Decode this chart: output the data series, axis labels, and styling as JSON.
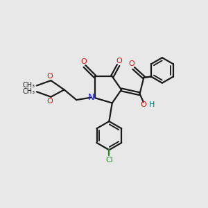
{
  "bg_color": "#e8e8e8",
  "bond_color": "#1a1a1a",
  "n_color": "#1414cc",
  "o_color": "#cc1414",
  "oh_color": "#008080",
  "cl_color": "#228B22",
  "figsize": [
    3.0,
    3.0
  ],
  "dpi": 100,
  "xlim": [
    0,
    10
  ],
  "ylim": [
    0,
    10
  ]
}
